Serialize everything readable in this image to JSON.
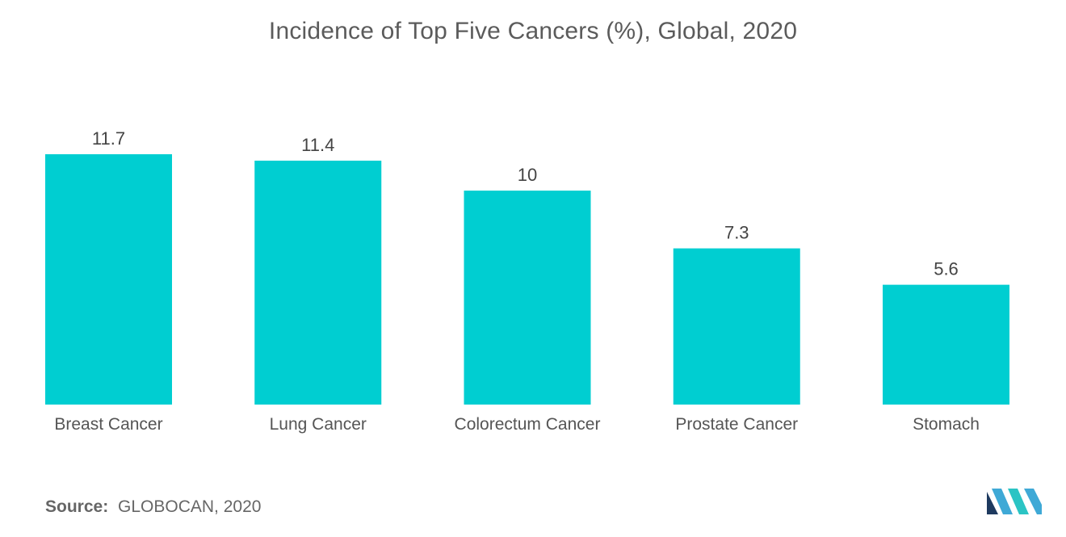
{
  "chart_data": {
    "type": "bar",
    "title": "Incidence of Top Five Cancers (%), Global, 2020",
    "categories": [
      "Breast Cancer",
      "Lung Cancer",
      "Colorectum Cancer",
      "Prostate Cancer",
      "Stomach"
    ],
    "values": [
      11.7,
      11.4,
      10,
      7.3,
      5.6
    ],
    "value_labels": [
      "11.7",
      "11.4",
      "10",
      "7.3",
      "5.6"
    ],
    "xlabel": "",
    "ylabel": "",
    "ylim": [
      0,
      11.7
    ],
    "grid": false,
    "legend": "none",
    "bar_color": "#00CED1"
  },
  "source": {
    "label": "Source:",
    "text": "GLOBOCAN, 2020"
  },
  "logo": {
    "icon": "mordor-intelligence-logo-icon",
    "colors": [
      "#1E3A5F",
      "#3FA9D6",
      "#2BC4C4"
    ]
  }
}
